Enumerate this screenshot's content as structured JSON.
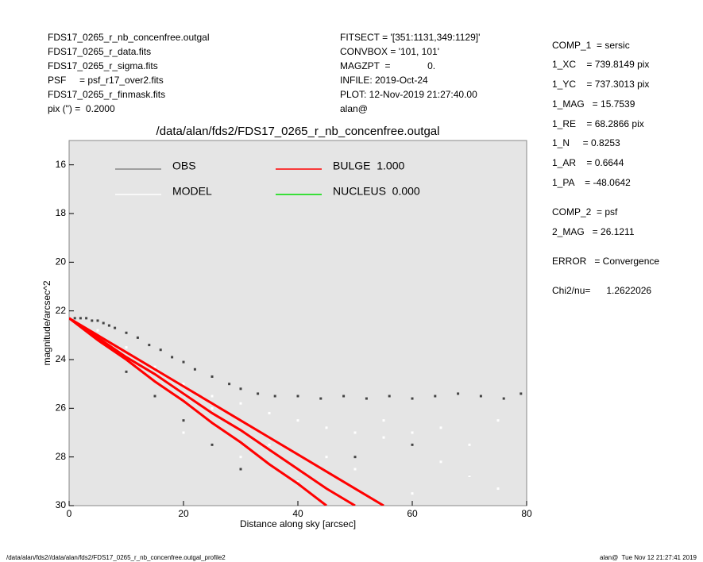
{
  "header": {
    "left": [
      "FDS17_0265_r_nb_concenfree.outgal",
      "FDS17_0265_r_data.fits",
      "FDS17_0265_r_sigma.fits",
      "PSF     = psf_r17_over2.fits",
      "FDS17_0265_r_finmask.fits",
      "pix (\") =  0.2000"
    ],
    "middle": [
      "FITSECT = '[351:1131,349:1129]'",
      "CONVBOX = '101, 101'",
      "MAGZPT  =              0.",
      "INFILE: 2019-Oct-24",
      "PLOT: 12-Nov-2019 21:27:40.00",
      "alan@"
    ],
    "right": [
      "COMP_1  = sersic",
      "1_XC    = 739.8149 pix",
      "1_YC    = 737.3013 pix",
      "1_MAG   = 15.7539",
      "1_RE    = 68.2866 pix",
      "1_N     = 0.8253",
      "1_AR    = 0.6644",
      "1_PA    = -48.0642",
      "COMP_2  = psf",
      "2_MAG   = 26.1211",
      "ERROR   = Convergence",
      "Chi2/nu=      1.2622026"
    ]
  },
  "footer": {
    "left": "/data/alan/fds2//data/alan/fds2/FDS17_0265_r_nb_concenfree.outgal_profile2",
    "right": "alan@  Tue Nov 12 21:27:41 2019"
  },
  "chart_data": {
    "type": "scatter",
    "title": "/data/alan/fds2/FDS17_0265_r_nb_concenfree.outgal",
    "x_label": "Distance along sky [arcsec]",
    "y_label": "magnitude/arcsec^2",
    "xlim": [
      0,
      80
    ],
    "xticks": [
      0,
      20,
      40,
      60,
      80
    ],
    "ylim": [
      30,
      15
    ],
    "yticks": [
      16,
      18,
      20,
      22,
      24,
      26,
      28,
      30
    ],
    "background": "#e5e5e5",
    "series": [
      {
        "name": "OBS",
        "color": "#444444",
        "legend_color": "#888888",
        "x": [
          1,
          2,
          3,
          4,
          5,
          6,
          7,
          8,
          10,
          12,
          14,
          16,
          18,
          20,
          22,
          25,
          28,
          30,
          33,
          36,
          40,
          44,
          48,
          52,
          56,
          60,
          64,
          68,
          72,
          76,
          79,
          10,
          15,
          20,
          25,
          30,
          40,
          50,
          60,
          70
        ],
        "values": [
          22.3,
          22.3,
          22.3,
          22.4,
          22.4,
          22.5,
          22.6,
          22.7,
          22.9,
          23.1,
          23.4,
          23.6,
          23.9,
          24.1,
          24.4,
          24.7,
          25.0,
          25.2,
          25.4,
          25.5,
          25.5,
          25.6,
          25.5,
          25.6,
          25.5,
          25.6,
          25.5,
          25.4,
          25.5,
          25.6,
          25.4,
          24.5,
          25.5,
          26.5,
          27.5,
          28.5,
          29.0,
          28.0,
          27.5,
          28.8
        ]
      },
      {
        "name": "MODEL",
        "color": "#ffffff",
        "x": [
          5,
          10,
          15,
          20,
          25,
          30,
          35,
          40,
          45,
          50,
          55,
          60,
          65,
          70,
          75,
          20,
          30,
          40,
          50,
          60,
          70,
          25,
          35,
          45,
          55,
          65,
          75
        ],
        "values": [
          22.8,
          23.5,
          24.3,
          25.0,
          25.5,
          25.8,
          26.2,
          26.5,
          26.8,
          27.0,
          27.2,
          27.0,
          26.8,
          27.5,
          26.5,
          27.0,
          28.0,
          29.0,
          28.5,
          29.5,
          28.8,
          26.0,
          27.5,
          28.0,
          26.5,
          28.2,
          29.3
        ]
      },
      {
        "name": "BULGE  1.000",
        "color": "#ff0000",
        "lines": [
          {
            "x": [
              0,
              5,
              10,
              15,
              20,
              25,
              30,
              35,
              40,
              45,
              50,
              55
            ],
            "values": [
              22.3,
              23.0,
              23.7,
              24.4,
              25.1,
              25.8,
              26.5,
              27.2,
              27.9,
              28.6,
              29.3,
              30.0
            ]
          },
          {
            "x": [
              0,
              5,
              10,
              15,
              20,
              25,
              30,
              35,
              40,
              45,
              50
            ],
            "values": [
              22.3,
              23.1,
              23.9,
              24.6,
              25.4,
              26.2,
              26.9,
              27.7,
              28.5,
              29.3,
              30.0
            ]
          },
          {
            "x": [
              0,
              5,
              10,
              15,
              20,
              25,
              30,
              35,
              40,
              45
            ],
            "values": [
              22.3,
              23.2,
              24.0,
              24.9,
              25.7,
              26.6,
              27.4,
              28.3,
              29.1,
              30.0
            ]
          }
        ]
      },
      {
        "name": "NUCLEUS  0.000",
        "color": "#00dd00"
      }
    ]
  }
}
